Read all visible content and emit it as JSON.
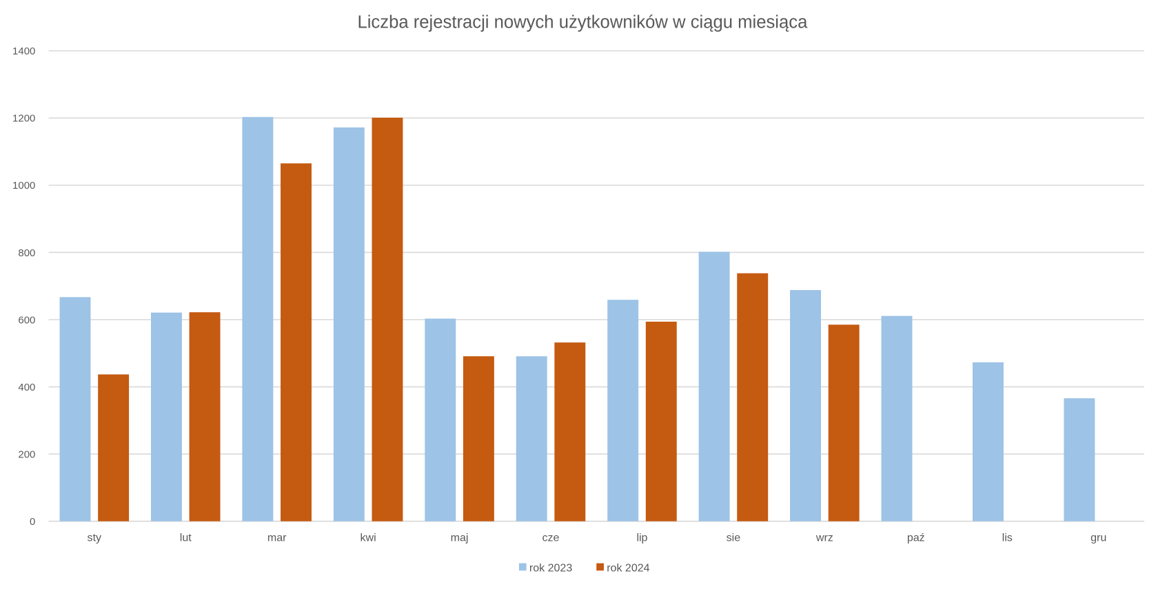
{
  "chart_data": {
    "type": "bar",
    "title": "Liczba rejestracji nowych użytkowników w ciągu miesiąca",
    "xlabel": "",
    "ylabel": "",
    "ylim": [
      0,
      1400
    ],
    "yticks": [
      0,
      200,
      400,
      600,
      800,
      1000,
      1200,
      1400
    ],
    "grid": true,
    "legend_position": "bottom",
    "categories": [
      "sty",
      "lut",
      "mar",
      "kwi",
      "maj",
      "cze",
      "lip",
      "sie",
      "wrz",
      "paź",
      "lis",
      "gru"
    ],
    "series": [
      {
        "name": "rok 2023",
        "color": "#9DC3E6",
        "values": [
          667,
          621,
          1203,
          1172,
          603,
          491,
          659,
          802,
          688,
          611,
          473,
          366
        ]
      },
      {
        "name": "rok 2024",
        "color": "#C55A11",
        "values": [
          437,
          622,
          1065,
          1201,
          491,
          532,
          594,
          738,
          585,
          null,
          null,
          null
        ]
      }
    ]
  }
}
